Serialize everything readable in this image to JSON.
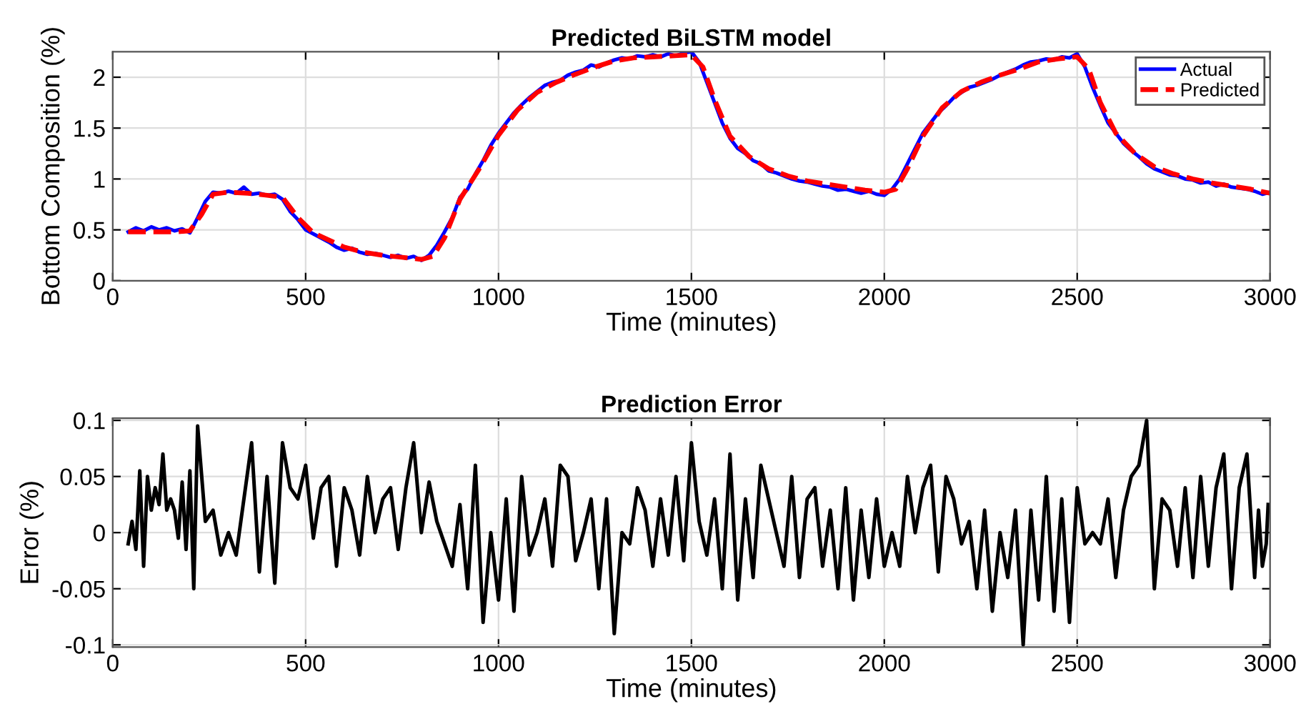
{
  "chart_data": [
    {
      "type": "line",
      "title": "Predicted BiLSTM model",
      "xlabel": "Time (minutes)",
      "ylabel": "Bottom Composition (%)",
      "xlim": [
        0,
        3000
      ],
      "xticks": [
        0,
        500,
        1000,
        1500,
        2000,
        2500,
        3000
      ],
      "ylim": [
        0,
        2.25
      ],
      "yticks": [
        0,
        0.5,
        1,
        1.5,
        2
      ],
      "grid": true,
      "legend": "top right",
      "series": [
        {
          "name": "Actual",
          "color": "#0000ff",
          "line_style": "solid",
          "x": [
            40,
            60,
            80,
            100,
            120,
            140,
            160,
            180,
            200,
            220,
            240,
            260,
            280,
            300,
            320,
            340,
            360,
            380,
            400,
            420,
            440,
            460,
            480,
            500,
            520,
            540,
            560,
            580,
            600,
            620,
            640,
            660,
            680,
            700,
            720,
            740,
            760,
            780,
            800,
            820,
            840,
            860,
            880,
            900,
            920,
            940,
            960,
            980,
            1000,
            1020,
            1040,
            1060,
            1080,
            1100,
            1120,
            1140,
            1160,
            1180,
            1200,
            1220,
            1240,
            1260,
            1280,
            1300,
            1320,
            1340,
            1360,
            1380,
            1400,
            1420,
            1440,
            1460,
            1480,
            1500,
            1520,
            1540,
            1560,
            1580,
            1600,
            1620,
            1640,
            1660,
            1680,
            1700,
            1720,
            1740,
            1760,
            1780,
            1800,
            1820,
            1840,
            1860,
            1880,
            1900,
            1920,
            1940,
            1960,
            1980,
            2000,
            2020,
            2040,
            2060,
            2080,
            2100,
            2120,
            2140,
            2160,
            2180,
            2200,
            2220,
            2240,
            2260,
            2280,
            2300,
            2320,
            2340,
            2360,
            2380,
            2400,
            2420,
            2440,
            2460,
            2480,
            2500,
            2520,
            2540,
            2560,
            2580,
            2600,
            2620,
            2640,
            2660,
            2680,
            2700,
            2720,
            2740,
            2760,
            2780,
            2800,
            2820,
            2840,
            2860,
            2880,
            2900,
            2920,
            2940,
            2960,
            2980,
            3000
          ],
          "values": [
            0.48,
            0.52,
            0.49,
            0.53,
            0.5,
            0.52,
            0.49,
            0.51,
            0.47,
            0.62,
            0.78,
            0.87,
            0.86,
            0.88,
            0.86,
            0.92,
            0.85,
            0.86,
            0.84,
            0.85,
            0.8,
            0.68,
            0.6,
            0.5,
            0.46,
            0.42,
            0.38,
            0.33,
            0.3,
            0.32,
            0.28,
            0.26,
            0.27,
            0.25,
            0.23,
            0.25,
            0.22,
            0.24,
            0.2,
            0.25,
            0.35,
            0.48,
            0.62,
            0.82,
            0.9,
            1.05,
            1.18,
            1.33,
            1.45,
            1.55,
            1.65,
            1.73,
            1.8,
            1.86,
            1.92,
            1.95,
            1.97,
            2.02,
            2.05,
            2.07,
            2.12,
            2.1,
            2.14,
            2.17,
            2.19,
            2.18,
            2.21,
            2.2,
            2.22,
            2.2,
            2.23,
            2.21,
            2.24,
            2.25,
            2.15,
            1.95,
            1.75,
            1.55,
            1.4,
            1.3,
            1.25,
            1.18,
            1.15,
            1.08,
            1.06,
            1.03,
            1.0,
            0.98,
            0.97,
            0.95,
            0.93,
            0.92,
            0.89,
            0.9,
            0.88,
            0.86,
            0.88,
            0.85,
            0.84,
            0.9,
            1.0,
            1.15,
            1.3,
            1.45,
            1.55,
            1.65,
            1.72,
            1.8,
            1.85,
            1.9,
            1.92,
            1.95,
            1.98,
            2.02,
            2.05,
            2.08,
            2.12,
            2.15,
            2.16,
            2.18,
            2.17,
            2.2,
            2.19,
            2.23,
            2.1,
            1.9,
            1.72,
            1.55,
            1.45,
            1.35,
            1.28,
            1.22,
            1.15,
            1.1,
            1.07,
            1.04,
            1.03,
            1.0,
            0.99,
            0.96,
            0.97,
            0.93,
            0.95,
            0.92,
            0.91,
            0.9,
            0.88,
            0.85,
            0.87
          ]
        },
        {
          "name": "Predicted",
          "color": "#ff0000",
          "line_style": "dashed",
          "x": [
            40,
            100,
            160,
            200,
            230,
            260,
            300,
            350,
            400,
            440,
            480,
            520,
            560,
            600,
            650,
            700,
            750,
            800,
            830,
            860,
            900,
            950,
            1000,
            1050,
            1100,
            1150,
            1200,
            1250,
            1300,
            1350,
            1400,
            1450,
            1500,
            1530,
            1560,
            1600,
            1650,
            1700,
            1750,
            1800,
            1850,
            1900,
            1950,
            2000,
            2030,
            2060,
            2100,
            2150,
            2200,
            2250,
            2300,
            2350,
            2400,
            2450,
            2500,
            2530,
            2560,
            2600,
            2650,
            2700,
            2750,
            2800,
            2850,
            2900,
            2950,
            3000
          ],
          "values": [
            0.48,
            0.48,
            0.48,
            0.49,
            0.65,
            0.85,
            0.87,
            0.86,
            0.84,
            0.82,
            0.62,
            0.47,
            0.4,
            0.33,
            0.28,
            0.25,
            0.23,
            0.21,
            0.24,
            0.42,
            0.8,
            1.1,
            1.43,
            1.68,
            1.85,
            1.95,
            2.03,
            2.1,
            2.16,
            2.19,
            2.2,
            2.21,
            2.22,
            2.1,
            1.78,
            1.42,
            1.22,
            1.1,
            1.03,
            0.98,
            0.95,
            0.92,
            0.89,
            0.87,
            0.9,
            1.1,
            1.42,
            1.7,
            1.86,
            1.95,
            2.02,
            2.08,
            2.15,
            2.18,
            2.2,
            2.08,
            1.75,
            1.45,
            1.25,
            1.12,
            1.05,
            1.0,
            0.96,
            0.93,
            0.9,
            0.86
          ]
        }
      ]
    },
    {
      "type": "line",
      "title": "Prediction Error",
      "xlabel": "Time (minutes)",
      "ylabel": "Error (%)",
      "xlim": [
        0,
        3000
      ],
      "xticks": [
        0,
        500,
        1000,
        1500,
        2000,
        2500,
        3000
      ],
      "ylim": [
        -0.102,
        0.102
      ],
      "yticks": [
        -0.1,
        -0.05,
        0,
        0.05,
        0.1
      ],
      "grid": true,
      "series": [
        {
          "color": "#000000",
          "line_style": "solid",
          "x": [
            40,
            50,
            60,
            70,
            80,
            90,
            100,
            110,
            120,
            130,
            140,
            150,
            160,
            170,
            180,
            190,
            200,
            210,
            220,
            240,
            260,
            280,
            300,
            320,
            340,
            360,
            380,
            400,
            420,
            440,
            460,
            480,
            500,
            520,
            540,
            560,
            580,
            600,
            620,
            640,
            660,
            680,
            700,
            720,
            740,
            760,
            780,
            800,
            820,
            840,
            860,
            880,
            900,
            920,
            940,
            960,
            980,
            1000,
            1020,
            1040,
            1060,
            1080,
            1100,
            1120,
            1140,
            1160,
            1180,
            1200,
            1220,
            1240,
            1260,
            1280,
            1300,
            1320,
            1340,
            1360,
            1380,
            1400,
            1420,
            1440,
            1460,
            1480,
            1500,
            1520,
            1540,
            1560,
            1580,
            1600,
            1620,
            1640,
            1660,
            1680,
            1700,
            1720,
            1740,
            1760,
            1780,
            1800,
            1820,
            1840,
            1860,
            1880,
            1900,
            1920,
            1940,
            1960,
            1980,
            2000,
            2020,
            2040,
            2060,
            2080,
            2100,
            2120,
            2140,
            2160,
            2180,
            2200,
            2220,
            2240,
            2260,
            2280,
            2300,
            2320,
            2340,
            2360,
            2380,
            2400,
            2420,
            2440,
            2460,
            2480,
            2500,
            2520,
            2540,
            2560,
            2580,
            2600,
            2620,
            2640,
            2660,
            2680,
            2700,
            2720,
            2740,
            2760,
            2780,
            2800,
            2820,
            2840,
            2860,
            2880,
            2900,
            2920,
            2940,
            2960,
            2970,
            2980,
            2990,
            2995
          ],
          "values": [
            -0.01,
            0.01,
            -0.015,
            0.055,
            -0.03,
            0.05,
            0.02,
            0.04,
            0.025,
            0.07,
            0.02,
            0.03,
            0.02,
            -0.005,
            0.045,
            -0.015,
            0.055,
            -0.05,
            0.095,
            0.01,
            0.02,
            -0.02,
            0.0,
            -0.02,
            0.03,
            0.08,
            -0.035,
            0.05,
            -0.045,
            0.08,
            0.04,
            0.03,
            0.06,
            -0.005,
            0.04,
            0.05,
            -0.03,
            0.04,
            0.02,
            -0.02,
            0.05,
            0.0,
            0.03,
            0.04,
            -0.015,
            0.04,
            0.08,
            0.0,
            0.045,
            0.01,
            -0.01,
            -0.03,
            0.025,
            -0.05,
            0.06,
            -0.08,
            0.0,
            -0.06,
            0.03,
            -0.07,
            0.05,
            -0.02,
            0.0,
            0.03,
            -0.03,
            0.06,
            0.05,
            -0.025,
            0.0,
            0.03,
            -0.05,
            0.03,
            -0.09,
            0.0,
            -0.01,
            0.04,
            0.02,
            -0.03,
            0.03,
            -0.02,
            0.05,
            -0.025,
            0.08,
            0.01,
            -0.02,
            0.03,
            -0.05,
            0.07,
            -0.06,
            0.03,
            -0.04,
            0.06,
            0.03,
            0.0,
            -0.03,
            0.05,
            -0.04,
            0.03,
            0.04,
            -0.03,
            0.02,
            -0.05,
            0.04,
            -0.06,
            0.02,
            -0.04,
            0.03,
            -0.03,
            0.0,
            -0.03,
            0.05,
            0.0,
            0.04,
            0.06,
            -0.035,
            0.05,
            0.03,
            -0.01,
            0.01,
            -0.05,
            0.02,
            -0.07,
            0.0,
            -0.04,
            0.02,
            -0.1,
            0.02,
            -0.06,
            0.05,
            -0.07,
            0.03,
            -0.08,
            0.04,
            -0.01,
            0.0,
            -0.01,
            0.03,
            -0.04,
            0.02,
            0.05,
            0.06,
            0.1,
            -0.05,
            0.03,
            0.02,
            -0.03,
            0.04,
            -0.04,
            0.05,
            -0.03,
            0.04,
            0.07,
            -0.05,
            0.04,
            0.07,
            -0.04,
            0.02,
            -0.03,
            -0.01,
            0.025
          ]
        }
      ]
    }
  ]
}
